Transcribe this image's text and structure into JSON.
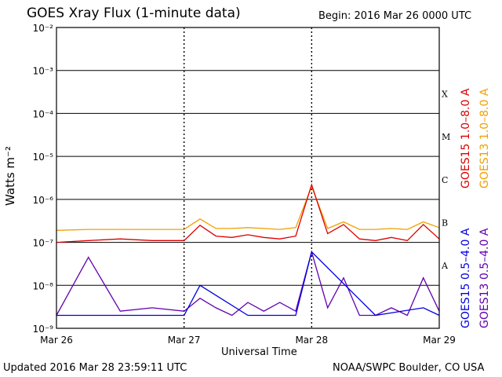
{
  "header": {
    "title": "GOES Xray Flux (1-minute data)",
    "begin": "Begin:  2016 Mar 26 0000 UTC"
  },
  "footer": {
    "updated": "Updated 2016 Mar 28 23:59:11 UTC",
    "credit": "NOAA/SWPC Boulder, CO USA"
  },
  "colors": {
    "goes15_long": "#dd0000",
    "goes13_long": "#f0a000",
    "goes15_short": "#0000dd",
    "goes13_short": "#6000b0"
  },
  "chart_data": {
    "type": "line",
    "title": "GOES Xray Flux (1-minute data)",
    "xlabel": "Universal Time",
    "ylabel": "Watts m⁻²",
    "yscale": "log",
    "ylim": [
      1e-09,
      0.01
    ],
    "y_ticks": [
      {
        "value": 0.01,
        "label": "10⁻²"
      },
      {
        "value": 0.001,
        "label": "10⁻³"
      },
      {
        "value": 0.0001,
        "label": "10⁻⁴"
      },
      {
        "value": 1e-05,
        "label": "10⁻⁵"
      },
      {
        "value": 1e-06,
        "label": "10⁻⁶"
      },
      {
        "value": 1e-07,
        "label": "10⁻⁷"
      },
      {
        "value": 1e-08,
        "label": "10⁻⁸"
      },
      {
        "value": 1e-09,
        "label": "10⁻⁹"
      }
    ],
    "xlim": [
      "2016-03-26T00:00",
      "2016-03-29T00:00"
    ],
    "x_ticks": [
      {
        "value": "2016-03-26T00:00",
        "label": "Mar 26"
      },
      {
        "value": "2016-03-27T00:00",
        "label": "Mar 27"
      },
      {
        "value": "2016-03-28T00:00",
        "label": "Mar 28"
      },
      {
        "value": "2016-03-29T00:00",
        "label": "Mar 29"
      }
    ],
    "flare_classes": [
      {
        "label": "X",
        "value": 0.0003
      },
      {
        "label": "M",
        "value": 3e-05
      },
      {
        "label": "C",
        "value": 3e-06
      },
      {
        "label": "B",
        "value": 3e-07
      },
      {
        "label": "A",
        "value": 3e-08
      }
    ],
    "grid": true,
    "legend_position": "right",
    "series": [
      {
        "name": "GOES15 1.0–8.0 A",
        "satellite": "GOES15",
        "band": "long",
        "x": [
          "2016-03-26T00:00",
          "2016-03-26T06:00",
          "2016-03-26T12:00",
          "2016-03-26T18:00",
          "2016-03-27T00:00",
          "2016-03-27T03:00",
          "2016-03-27T06:00",
          "2016-03-27T09:00",
          "2016-03-27T12:00",
          "2016-03-27T15:00",
          "2016-03-27T18:00",
          "2016-03-27T21:00",
          "2016-03-28T00:00",
          "2016-03-28T03:00",
          "2016-03-28T06:00",
          "2016-03-28T09:00",
          "2016-03-28T12:00",
          "2016-03-28T15:00",
          "2016-03-28T18:00",
          "2016-03-28T21:00",
          "2016-03-29T00:00"
        ],
        "values": [
          1e-07,
          1.1e-07,
          1.2e-07,
          1.1e-07,
          1.1e-07,
          2.5e-07,
          1.4e-07,
          1.3e-07,
          1.5e-07,
          1.3e-07,
          1.2e-07,
          1.4e-07,
          2.2e-06,
          1.6e-07,
          2.6e-07,
          1.2e-07,
          1.1e-07,
          1.3e-07,
          1.1e-07,
          2.6e-07,
          1.2e-07
        ]
      },
      {
        "name": "GOES13 1.0–8.0 A",
        "satellite": "GOES13",
        "band": "long",
        "x": [
          "2016-03-26T00:00",
          "2016-03-26T06:00",
          "2016-03-26T12:00",
          "2016-03-26T18:00",
          "2016-03-27T00:00",
          "2016-03-27T03:00",
          "2016-03-27T06:00",
          "2016-03-27T09:00",
          "2016-03-27T12:00",
          "2016-03-27T15:00",
          "2016-03-27T18:00",
          "2016-03-27T21:00",
          "2016-03-28T00:00",
          "2016-03-28T03:00",
          "2016-03-28T06:00",
          "2016-03-28T09:00",
          "2016-03-28T12:00",
          "2016-03-28T15:00",
          "2016-03-28T18:00",
          "2016-03-28T21:00",
          "2016-03-29T00:00"
        ],
        "values": [
          1.9e-07,
          2e-07,
          2e-07,
          2e-07,
          2e-07,
          3.5e-07,
          2.1e-07,
          2.1e-07,
          2.2e-07,
          2.1e-07,
          2e-07,
          2.2e-07,
          2e-06,
          2.1e-07,
          3e-07,
          2e-07,
          2e-07,
          2.1e-07,
          2e-07,
          3e-07,
          2.2e-07
        ]
      },
      {
        "name": "GOES15 0.5–4.0 A",
        "satellite": "GOES15",
        "band": "short",
        "x": [
          "2016-03-26T00:00",
          "2016-03-26T12:00",
          "2016-03-27T00:00",
          "2016-03-27T03:00",
          "2016-03-27T12:00",
          "2016-03-27T21:00",
          "2016-03-28T00:00",
          "2016-03-28T12:00",
          "2016-03-28T21:00",
          "2016-03-29T00:00"
        ],
        "values": [
          2e-09,
          2e-09,
          2e-09,
          1e-08,
          2e-09,
          2e-09,
          6e-08,
          2e-09,
          3e-09,
          2e-09
        ]
      },
      {
        "name": "GOES13 0.5–4.0 A",
        "satellite": "GOES13",
        "band": "short",
        "x": [
          "2016-03-26T00:00",
          "2016-03-26T06:00",
          "2016-03-26T12:00",
          "2016-03-26T18:00",
          "2016-03-27T00:00",
          "2016-03-27T03:00",
          "2016-03-27T06:00",
          "2016-03-27T09:00",
          "2016-03-27T12:00",
          "2016-03-27T15:00",
          "2016-03-27T18:00",
          "2016-03-27T21:00",
          "2016-03-28T00:00",
          "2016-03-28T03:00",
          "2016-03-28T06:00",
          "2016-03-28T09:00",
          "2016-03-28T12:00",
          "2016-03-28T15:00",
          "2016-03-28T18:00",
          "2016-03-28T21:00",
          "2016-03-29T00:00"
        ],
        "values": [
          2e-09,
          4.5e-08,
          2.5e-09,
          3e-09,
          2.5e-09,
          5e-09,
          3e-09,
          2e-09,
          4e-09,
          2.5e-09,
          4e-09,
          2.5e-09,
          6e-08,
          3e-09,
          1.5e-08,
          2e-09,
          2e-09,
          3e-09,
          2e-09,
          1.5e-08,
          2.5e-09
        ]
      }
    ]
  }
}
